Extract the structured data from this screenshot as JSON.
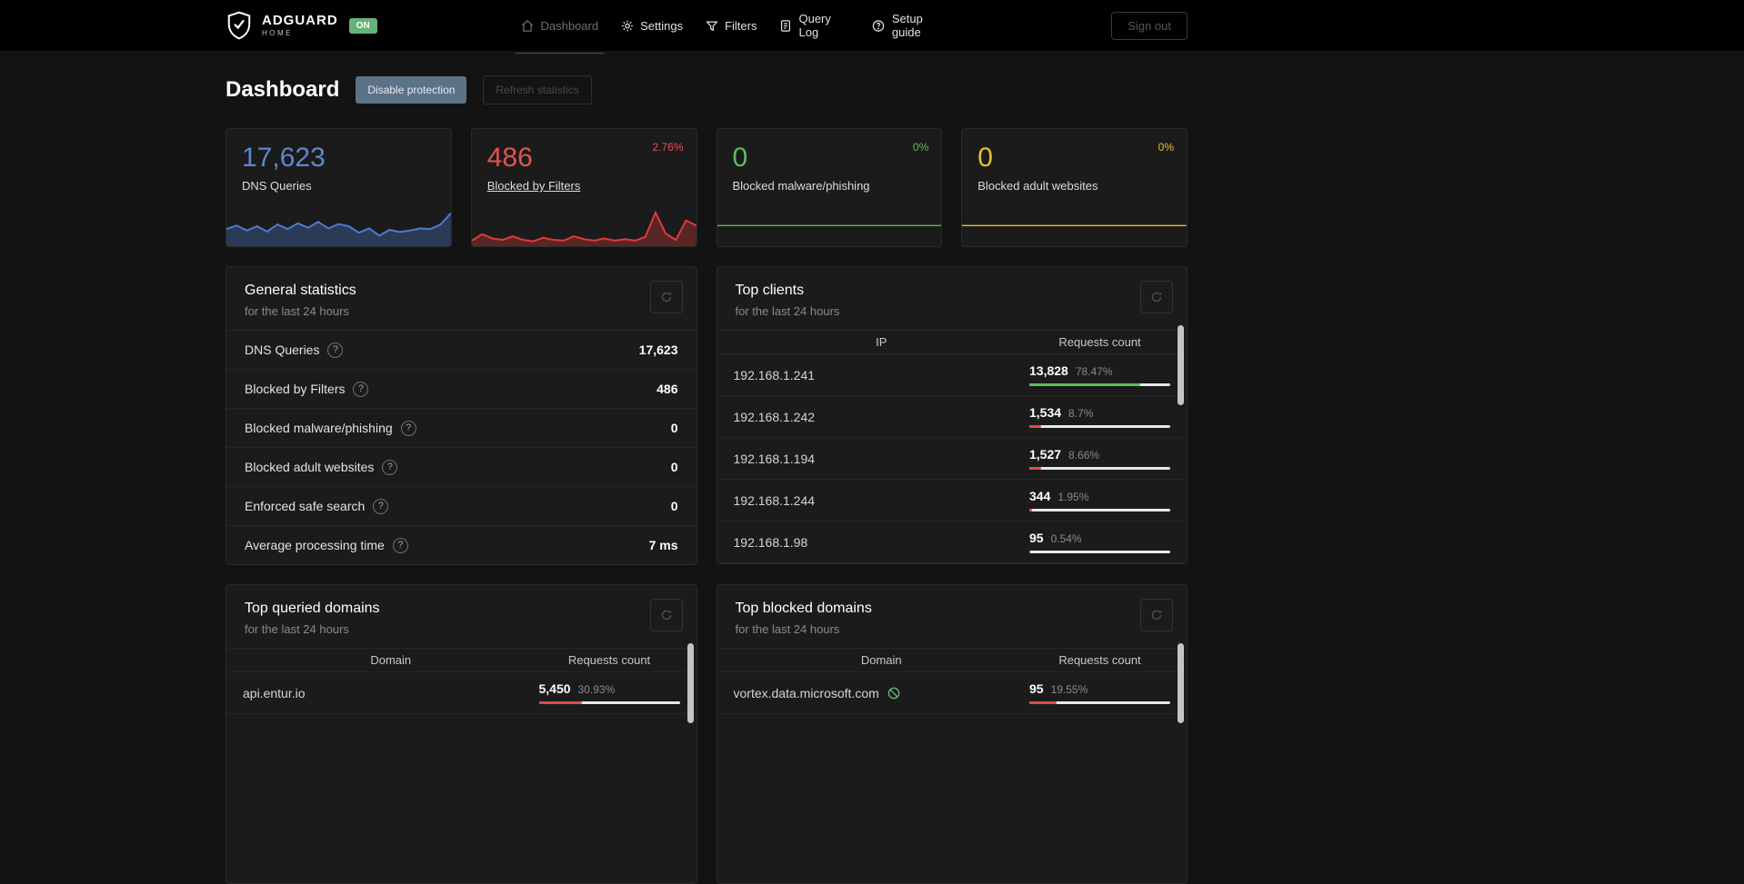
{
  "nav": {
    "brand": {
      "title": "ADGUARD",
      "subtitle": "HOME",
      "status_badge": "ON"
    },
    "items": [
      {
        "label": "Dashboard",
        "icon": "dashboard-icon",
        "active": true
      },
      {
        "label": "Settings",
        "icon": "gear-icon",
        "active": false
      },
      {
        "label": "Filters",
        "icon": "filter-icon",
        "active": false
      },
      {
        "label": "Query Log",
        "icon": "query-log-icon",
        "active": false
      },
      {
        "label": "Setup guide",
        "icon": "help-icon",
        "active": false
      }
    ],
    "sign_out": "Sign out"
  },
  "page": {
    "title": "Dashboard",
    "buttons": {
      "disable_protection": "Disable protection",
      "refresh_statistics": "Refresh statistics"
    }
  },
  "theme": {
    "accent_blue": "#5d87d1",
    "accent_red": "#e25252",
    "accent_green": "#5dbb5d",
    "accent_yellow": "#dfc22f",
    "badge_green": "#67b279",
    "bar_track": "#e8e8e8",
    "bars": {
      "green": "#5dbb5d",
      "red": "#e04a4a"
    }
  },
  "stat_cards": [
    {
      "value": "17,623",
      "label": "DNS Queries",
      "percent": ""
    },
    {
      "value": "486",
      "label": "Blocked by Filters",
      "percent": "2.76%"
    },
    {
      "value": "0",
      "label": "Blocked malware/phishing",
      "percent": "0%"
    },
    {
      "value": "0",
      "label": "Blocked adult websites",
      "percent": "0%"
    }
  ],
  "general_statistics": {
    "title": "General statistics",
    "subtitle": "for the last 24 hours",
    "rows": [
      {
        "label": "DNS Queries",
        "value": "17,623"
      },
      {
        "label": "Blocked by Filters",
        "value": "486"
      },
      {
        "label": "Blocked malware/phishing",
        "value": "0"
      },
      {
        "label": "Blocked adult websites",
        "value": "0"
      },
      {
        "label": "Enforced safe search",
        "value": "0"
      },
      {
        "label": "Average processing time",
        "value": "7 ms"
      }
    ]
  },
  "top_clients": {
    "title": "Top clients",
    "subtitle": "for the last 24 hours",
    "columns": [
      "IP",
      "Requests count"
    ],
    "rows": [
      {
        "ip": "192.168.1.241",
        "count": "13,828",
        "percent": "78.47%",
        "bar": 78.47,
        "bar_color": "green"
      },
      {
        "ip": "192.168.1.242",
        "count": "1,534",
        "percent": "8.7%",
        "bar": 8.7,
        "bar_color": "red"
      },
      {
        "ip": "192.168.1.194",
        "count": "1,527",
        "percent": "8.66%",
        "bar": 8.66,
        "bar_color": "red"
      },
      {
        "ip": "192.168.1.244",
        "count": "344",
        "percent": "1.95%",
        "bar": 1.95,
        "bar_color": "red"
      },
      {
        "ip": "192.168.1.98",
        "count": "95",
        "percent": "0.54%",
        "bar": 0.54,
        "bar_color": "red"
      }
    ]
  },
  "top_queried_domains": {
    "title": "Top queried domains",
    "subtitle": "for the last 24 hours",
    "columns": [
      "Domain",
      "Requests count"
    ],
    "rows": [
      {
        "domain": "api.entur.io",
        "count": "5,450",
        "percent": "30.93%",
        "bar": 30.93,
        "bar_color": "red"
      }
    ]
  },
  "top_blocked_domains": {
    "title": "Top blocked domains",
    "subtitle": "for the last 24 hours",
    "columns": [
      "Domain",
      "Requests count"
    ],
    "rows": [
      {
        "domain": "vortex.data.microsoft.com",
        "count": "95",
        "percent": "19.55%",
        "bar": 19.55,
        "bar_color": "red",
        "icon": "unblock-domain-icon"
      }
    ]
  },
  "chart_data": [
    {
      "type": "area",
      "name": "dns-queries-sparkline",
      "color": "#4d7bd0",
      "values": [
        0.42,
        0.52,
        0.38,
        0.5,
        0.35,
        0.55,
        0.42,
        0.58,
        0.46,
        0.62,
        0.44,
        0.56,
        0.5,
        0.32,
        0.44,
        0.24,
        0.4,
        0.34,
        0.38,
        0.44,
        0.42,
        0.55,
        0.86
      ]
    },
    {
      "type": "area",
      "name": "blocked-by-filters-sparkline",
      "color": "#e03b3b",
      "values": [
        0.1,
        0.28,
        0.16,
        0.12,
        0.22,
        0.12,
        0.08,
        0.18,
        0.12,
        0.1,
        0.22,
        0.14,
        0.1,
        0.16,
        0.1,
        0.14,
        0.1,
        0.2,
        0.88,
        0.3,
        0.12,
        0.66,
        0.52
      ]
    },
    {
      "type": "line",
      "name": "blocked-malware-sparkline",
      "color": "#5dbb5d",
      "values": [
        0,
        0,
        0,
        0,
        0,
        0,
        0,
        0,
        0,
        0
      ]
    },
    {
      "type": "line",
      "name": "blocked-adult-sparkline",
      "color": "#dfc22f",
      "values": [
        0,
        0,
        0,
        0,
        0,
        0,
        0,
        0,
        0,
        0
      ]
    }
  ]
}
